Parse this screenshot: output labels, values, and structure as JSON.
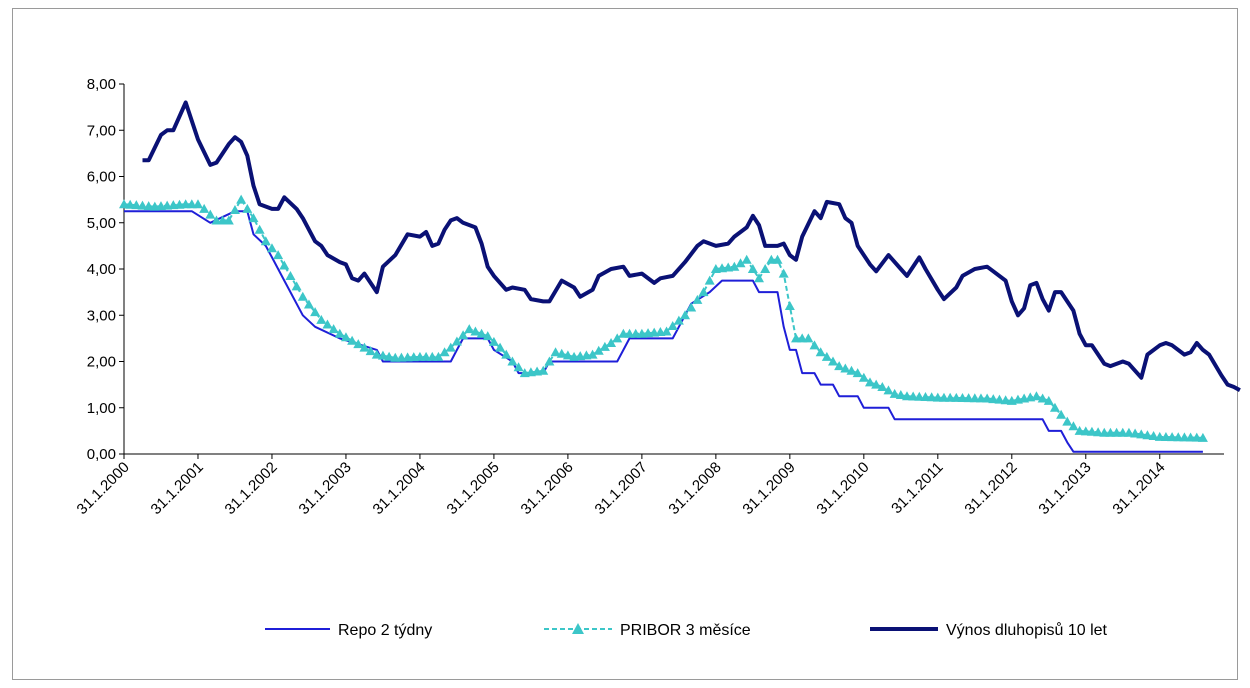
{
  "chart_data": {
    "type": "line",
    "title": "",
    "xlabel": "",
    "ylabel": "",
    "ylim": [
      0,
      8
    ],
    "yticks": [
      "0,00",
      "1,00",
      "2,00",
      "3,00",
      "4,00",
      "5,00",
      "6,00",
      "7,00",
      "8,00"
    ],
    "xticks": [
      "31.1.2000",
      "31.1.2001",
      "31.1.2002",
      "31.1.2003",
      "31.1.2004",
      "31.1.2005",
      "31.1.2006",
      "31.1.2007",
      "31.1.2008",
      "31.1.2009",
      "31.1.2010",
      "31.1.2011",
      "31.1.2012",
      "31.1.2013",
      "31.1.2014"
    ],
    "x_start": "2000-01",
    "x_end": "2014-08",
    "grid": false,
    "legend_position": "bottom",
    "series": [
      {
        "name": "Repo 2 týdny",
        "color": "#1f1fd8",
        "style": "solid",
        "points": [
          [
            "2000-01",
            5.25
          ],
          [
            "2000-12",
            5.25
          ],
          [
            "2001-03",
            5.0
          ],
          [
            "2001-07",
            5.25
          ],
          [
            "2001-09",
            5.25
          ],
          [
            "2001-10",
            4.75
          ],
          [
            "2001-12",
            4.5
          ],
          [
            "2002-01",
            4.25
          ],
          [
            "2002-03",
            3.75
          ],
          [
            "2002-06",
            3.0
          ],
          [
            "2002-08",
            2.75
          ],
          [
            "2002-12",
            2.5
          ],
          [
            "2003-06",
            2.25
          ],
          [
            "2003-07",
            2.0
          ],
          [
            "2004-06",
            2.0
          ],
          [
            "2004-07",
            2.25
          ],
          [
            "2004-08",
            2.5
          ],
          [
            "2004-12",
            2.5
          ],
          [
            "2005-01",
            2.25
          ],
          [
            "2005-04",
            2.0
          ],
          [
            "2005-05",
            1.75
          ],
          [
            "2005-09",
            1.75
          ],
          [
            "2005-10",
            2.0
          ],
          [
            "2006-09",
            2.0
          ],
          [
            "2006-10",
            2.25
          ],
          [
            "2006-11",
            2.5
          ],
          [
            "2007-06",
            2.5
          ],
          [
            "2007-07",
            2.75
          ],
          [
            "2007-08",
            3.0
          ],
          [
            "2007-09",
            3.25
          ],
          [
            "2007-12",
            3.5
          ],
          [
            "2008-02",
            3.75
          ],
          [
            "2008-07",
            3.75
          ],
          [
            "2008-08",
            3.5
          ],
          [
            "2008-11",
            3.5
          ],
          [
            "2008-12",
            2.75
          ],
          [
            "2009-01",
            2.25
          ],
          [
            "2009-02",
            2.25
          ],
          [
            "2009-03",
            1.75
          ],
          [
            "2009-05",
            1.75
          ],
          [
            "2009-06",
            1.5
          ],
          [
            "2009-08",
            1.5
          ],
          [
            "2009-09",
            1.25
          ],
          [
            "2009-12",
            1.25
          ],
          [
            "2010-01",
            1.0
          ],
          [
            "2010-05",
            1.0
          ],
          [
            "2010-06",
            0.75
          ],
          [
            "2012-06",
            0.75
          ],
          [
            "2012-07",
            0.5
          ],
          [
            "2012-09",
            0.5
          ],
          [
            "2012-10",
            0.25
          ],
          [
            "2012-11",
            0.05
          ],
          [
            "2014-08",
            0.05
          ]
        ]
      },
      {
        "name": "PRIBOR 3 měsíce",
        "color": "#3cc6c8",
        "style": "dashed",
        "marker": "triangle",
        "points": [
          [
            "2000-01",
            5.4
          ],
          [
            "2000-06",
            5.35
          ],
          [
            "2000-11",
            5.4
          ],
          [
            "2001-01",
            5.4
          ],
          [
            "2001-02",
            5.3
          ],
          [
            "2001-04",
            5.05
          ],
          [
            "2001-06",
            5.05
          ],
          [
            "2001-08",
            5.5
          ],
          [
            "2001-10",
            5.1
          ],
          [
            "2001-12",
            4.6
          ],
          [
            "2002-02",
            4.3
          ],
          [
            "2002-04",
            3.85
          ],
          [
            "2002-06",
            3.4
          ],
          [
            "2002-09",
            2.9
          ],
          [
            "2002-12",
            2.6
          ],
          [
            "2003-02",
            2.45
          ],
          [
            "2003-06",
            2.15
          ],
          [
            "2003-09",
            2.08
          ],
          [
            "2004-01",
            2.1
          ],
          [
            "2004-04",
            2.1
          ],
          [
            "2004-06",
            2.3
          ],
          [
            "2004-09",
            2.7
          ],
          [
            "2004-12",
            2.55
          ],
          [
            "2005-02",
            2.3
          ],
          [
            "2005-04",
            2.0
          ],
          [
            "2005-06",
            1.75
          ],
          [
            "2005-09",
            1.8
          ],
          [
            "2005-11",
            2.2
          ],
          [
            "2006-02",
            2.1
          ],
          [
            "2006-05",
            2.15
          ],
          [
            "2006-08",
            2.4
          ],
          [
            "2006-10",
            2.6
          ],
          [
            "2007-01",
            2.6
          ],
          [
            "2007-05",
            2.65
          ],
          [
            "2007-08",
            3.0
          ],
          [
            "2007-11",
            3.5
          ],
          [
            "2008-01",
            4.0
          ],
          [
            "2008-04",
            4.05
          ],
          [
            "2008-06",
            4.2
          ],
          [
            "2008-08",
            3.8
          ],
          [
            "2008-10",
            4.2
          ],
          [
            "2008-11",
            4.2
          ],
          [
            "2008-12",
            3.9
          ],
          [
            "2009-01",
            3.2
          ],
          [
            "2009-02",
            2.5
          ],
          [
            "2009-04",
            2.5
          ],
          [
            "2009-06",
            2.2
          ],
          [
            "2009-09",
            1.9
          ],
          [
            "2009-12",
            1.75
          ],
          [
            "2010-02",
            1.55
          ],
          [
            "2010-04",
            1.45
          ],
          [
            "2010-06",
            1.3
          ],
          [
            "2010-08",
            1.25
          ],
          [
            "2011-01",
            1.22
          ],
          [
            "2011-09",
            1.2
          ],
          [
            "2012-01",
            1.15
          ],
          [
            "2012-05",
            1.25
          ],
          [
            "2012-07",
            1.15
          ],
          [
            "2012-08",
            1.0
          ],
          [
            "2012-10",
            0.7
          ],
          [
            "2012-12",
            0.5
          ],
          [
            "2013-04",
            0.46
          ],
          [
            "2013-08",
            0.46
          ],
          [
            "2014-01",
            0.37
          ],
          [
            "2014-08",
            0.35
          ]
        ]
      },
      {
        "name": "Výnos dluhopisů 10 let",
        "color": "#0a1175",
        "style": "solid",
        "points": [
          [
            "2000-04",
            6.35
          ],
          [
            "2000-05",
            6.35
          ],
          [
            "2000-07",
            6.9
          ],
          [
            "2000-08",
            7.0
          ],
          [
            "2000-09",
            7.0
          ],
          [
            "2000-11",
            7.6
          ],
          [
            "2001-01",
            6.8
          ],
          [
            "2001-03",
            6.25
          ],
          [
            "2001-04",
            6.3
          ],
          [
            "2001-06",
            6.7
          ],
          [
            "2001-07",
            6.85
          ],
          [
            "2001-08",
            6.75
          ],
          [
            "2001-09",
            6.45
          ],
          [
            "2001-10",
            5.8
          ],
          [
            "2001-11",
            5.4
          ],
          [
            "2002-01",
            5.3
          ],
          [
            "2002-02",
            5.3
          ],
          [
            "2002-03",
            5.55
          ],
          [
            "2002-05",
            5.3
          ],
          [
            "2002-06",
            5.1
          ],
          [
            "2002-08",
            4.6
          ],
          [
            "2002-09",
            4.5
          ],
          [
            "2002-10",
            4.3
          ],
          [
            "2002-12",
            4.15
          ],
          [
            "2003-01",
            4.1
          ],
          [
            "2003-02",
            3.8
          ],
          [
            "2003-03",
            3.75
          ],
          [
            "2003-04",
            3.9
          ],
          [
            "2003-06",
            3.5
          ],
          [
            "2003-07",
            4.05
          ],
          [
            "2003-09",
            4.3
          ],
          [
            "2003-11",
            4.75
          ],
          [
            "2004-01",
            4.7
          ],
          [
            "2004-02",
            4.8
          ],
          [
            "2004-03",
            4.5
          ],
          [
            "2004-04",
            4.55
          ],
          [
            "2004-05",
            4.85
          ],
          [
            "2004-06",
            5.05
          ],
          [
            "2004-07",
            5.1
          ],
          [
            "2004-08",
            5.0
          ],
          [
            "2004-10",
            4.9
          ],
          [
            "2004-11",
            4.55
          ],
          [
            "2004-12",
            4.05
          ],
          [
            "2005-01",
            3.85
          ],
          [
            "2005-03",
            3.55
          ],
          [
            "2005-04",
            3.6
          ],
          [
            "2005-06",
            3.55
          ],
          [
            "2005-07",
            3.35
          ],
          [
            "2005-09",
            3.3
          ],
          [
            "2005-10",
            3.3
          ],
          [
            "2005-12",
            3.75
          ],
          [
            "2006-02",
            3.6
          ],
          [
            "2006-03",
            3.4
          ],
          [
            "2006-05",
            3.55
          ],
          [
            "2006-06",
            3.85
          ],
          [
            "2006-08",
            4.0
          ],
          [
            "2006-10",
            4.05
          ],
          [
            "2006-11",
            3.85
          ],
          [
            "2007-01",
            3.9
          ],
          [
            "2007-03",
            3.7
          ],
          [
            "2007-04",
            3.8
          ],
          [
            "2007-06",
            3.85
          ],
          [
            "2007-08",
            4.15
          ],
          [
            "2007-10",
            4.5
          ],
          [
            "2007-11",
            4.6
          ],
          [
            "2008-01",
            4.5
          ],
          [
            "2008-03",
            4.55
          ],
          [
            "2008-04",
            4.7
          ],
          [
            "2008-06",
            4.9
          ],
          [
            "2008-07",
            5.15
          ],
          [
            "2008-08",
            4.95
          ],
          [
            "2008-09",
            4.5
          ],
          [
            "2008-11",
            4.5
          ],
          [
            "2008-12",
            4.55
          ],
          [
            "2009-01",
            4.3
          ],
          [
            "2009-02",
            4.2
          ],
          [
            "2009-03",
            4.7
          ],
          [
            "2009-05",
            5.25
          ],
          [
            "2009-06",
            5.1
          ],
          [
            "2009-07",
            5.45
          ],
          [
            "2009-09",
            5.4
          ],
          [
            "2009-10",
            5.1
          ],
          [
            "2009-11",
            5.0
          ],
          [
            "2009-12",
            4.5
          ],
          [
            "2010-02",
            4.1
          ],
          [
            "2010-03",
            3.95
          ],
          [
            "2010-05",
            4.3
          ],
          [
            "2010-07",
            4.0
          ],
          [
            "2010-08",
            3.85
          ],
          [
            "2010-10",
            4.25
          ],
          [
            "2010-11",
            4.0
          ],
          [
            "2011-01",
            3.55
          ],
          [
            "2011-02",
            3.35
          ],
          [
            "2011-04",
            3.6
          ],
          [
            "2011-05",
            3.85
          ],
          [
            "2011-07",
            4.0
          ],
          [
            "2011-09",
            4.05
          ],
          [
            "2011-10",
            3.95
          ],
          [
            "2011-12",
            3.75
          ],
          [
            "2012-01",
            3.3
          ],
          [
            "2012-02",
            3.0
          ],
          [
            "2012-03",
            3.15
          ],
          [
            "2012-04",
            3.65
          ],
          [
            "2012-05",
            3.7
          ],
          [
            "2012-06",
            3.35
          ],
          [
            "2012-07",
            3.1
          ],
          [
            "2012-08",
            3.5
          ],
          [
            "2012-09",
            3.5
          ],
          [
            "2012-11",
            3.1
          ],
          [
            "2012-12",
            2.6
          ],
          [
            "2013-01",
            2.35
          ],
          [
            "2013-02",
            2.35
          ],
          [
            "2013-04",
            1.95
          ],
          [
            "2013-05",
            1.9
          ],
          [
            "2013-07",
            2.0
          ],
          [
            "2013-08",
            1.95
          ],
          [
            "2013-10",
            1.65
          ],
          [
            "2013-11",
            2.15
          ],
          [
            "2014-01",
            2.35
          ],
          [
            "2014-02",
            2.4
          ],
          [
            "2014-03",
            2.35
          ],
          [
            "2014-05",
            2.15
          ],
          [
            "2014-06",
            2.2
          ],
          [
            "2014-07",
            2.4
          ],
          [
            "2014-08",
            2.25
          ],
          [
            "2014-09",
            2.15
          ],
          [
            "2014-11",
            1.7
          ],
          [
            "2014-12",
            1.5
          ],
          [
            "2015-01",
            1.45
          ],
          [
            "2015-02",
            1.38
          ]
        ]
      }
    ]
  }
}
